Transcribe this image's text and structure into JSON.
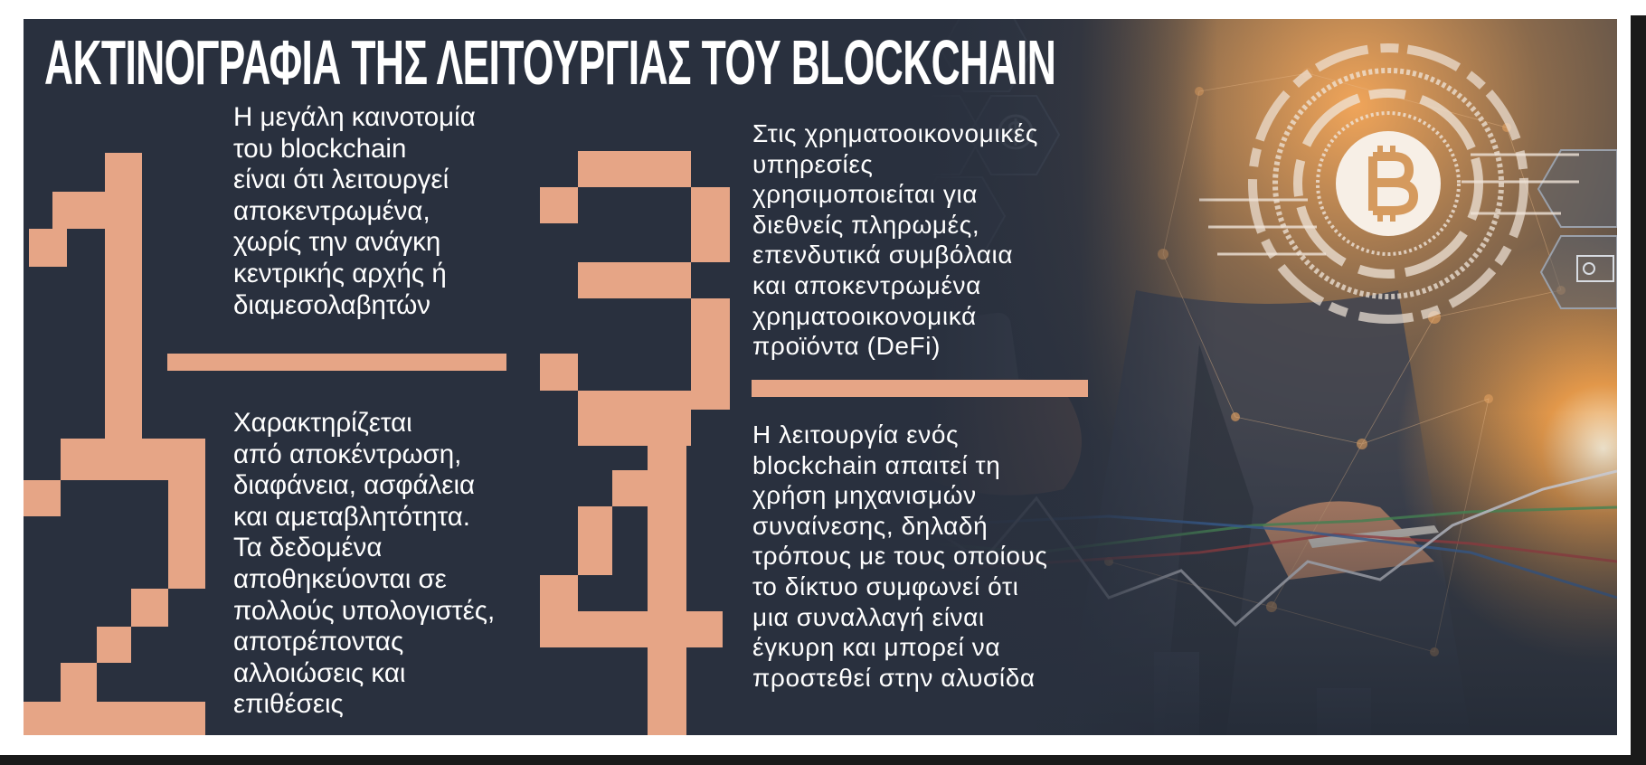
{
  "title": "ΑΚΤΙΝΟΓΡΑΦΙΑ ΤΗΣ ΛΕΙΤΟΥΡΓΙΑΣ ΤΟΥ BLOCKCHAIN",
  "colors": {
    "background": "#29303e",
    "accent": "#e6a586",
    "text": "#ffffff"
  },
  "digits": [
    "1",
    "2",
    "3",
    "4"
  ],
  "points": [
    {
      "number": "1",
      "lines": [
        "Η μεγάλη καινοτομία",
        "του blockchain",
        "είναι ότι λειτουργεί",
        "αποκεντρωμένα,",
        "χωρίς την ανάγκη",
        "κεντρικής αρχής ή",
        "διαμεσολαβητών"
      ]
    },
    {
      "number": "2",
      "lines": [
        "Χαρακτηρίζεται",
        "από αποκέντρωση,",
        "διαφάνεια, ασφάλεια",
        "και αμεταβλητότητα.",
        "Τα δεδομένα",
        "αποθηκεύονται σε",
        "πολλούς υπολογιστές,",
        "αποτρέποντας",
        "αλλοιώσεις και",
        "επιθέσεις"
      ]
    },
    {
      "number": "3",
      "lines": [
        "Στις χρηματοοικονομικές",
        "υπηρεσίες",
        "χρησιμοποιείται για",
        "διεθνείς πληρωμές,",
        "επενδυτικά συμβόλαια",
        "και αποκεντρωμένα",
        "χρηματοοικονομικά",
        "προϊόντα (DeFi)"
      ]
    },
    {
      "number": "4",
      "lines": [
        "Η λειτουργία ενός",
        "blockchain απαιτεί τη",
        "χρήση μηχανισμών",
        "συναίνεσης, δηλαδή",
        "τρόπους με τους οποίους",
        "το δίκτυο συμφωνεί ότι",
        "μια συναλλαγή είναι",
        "έγκυρη και μπορεί να",
        "προστεθεί στην αλυσίδα"
      ]
    }
  ],
  "photo": {
    "icons": [
      "bitcoin-icon",
      "dollar-coin-icon",
      "computer-dollar-icon"
    ]
  }
}
